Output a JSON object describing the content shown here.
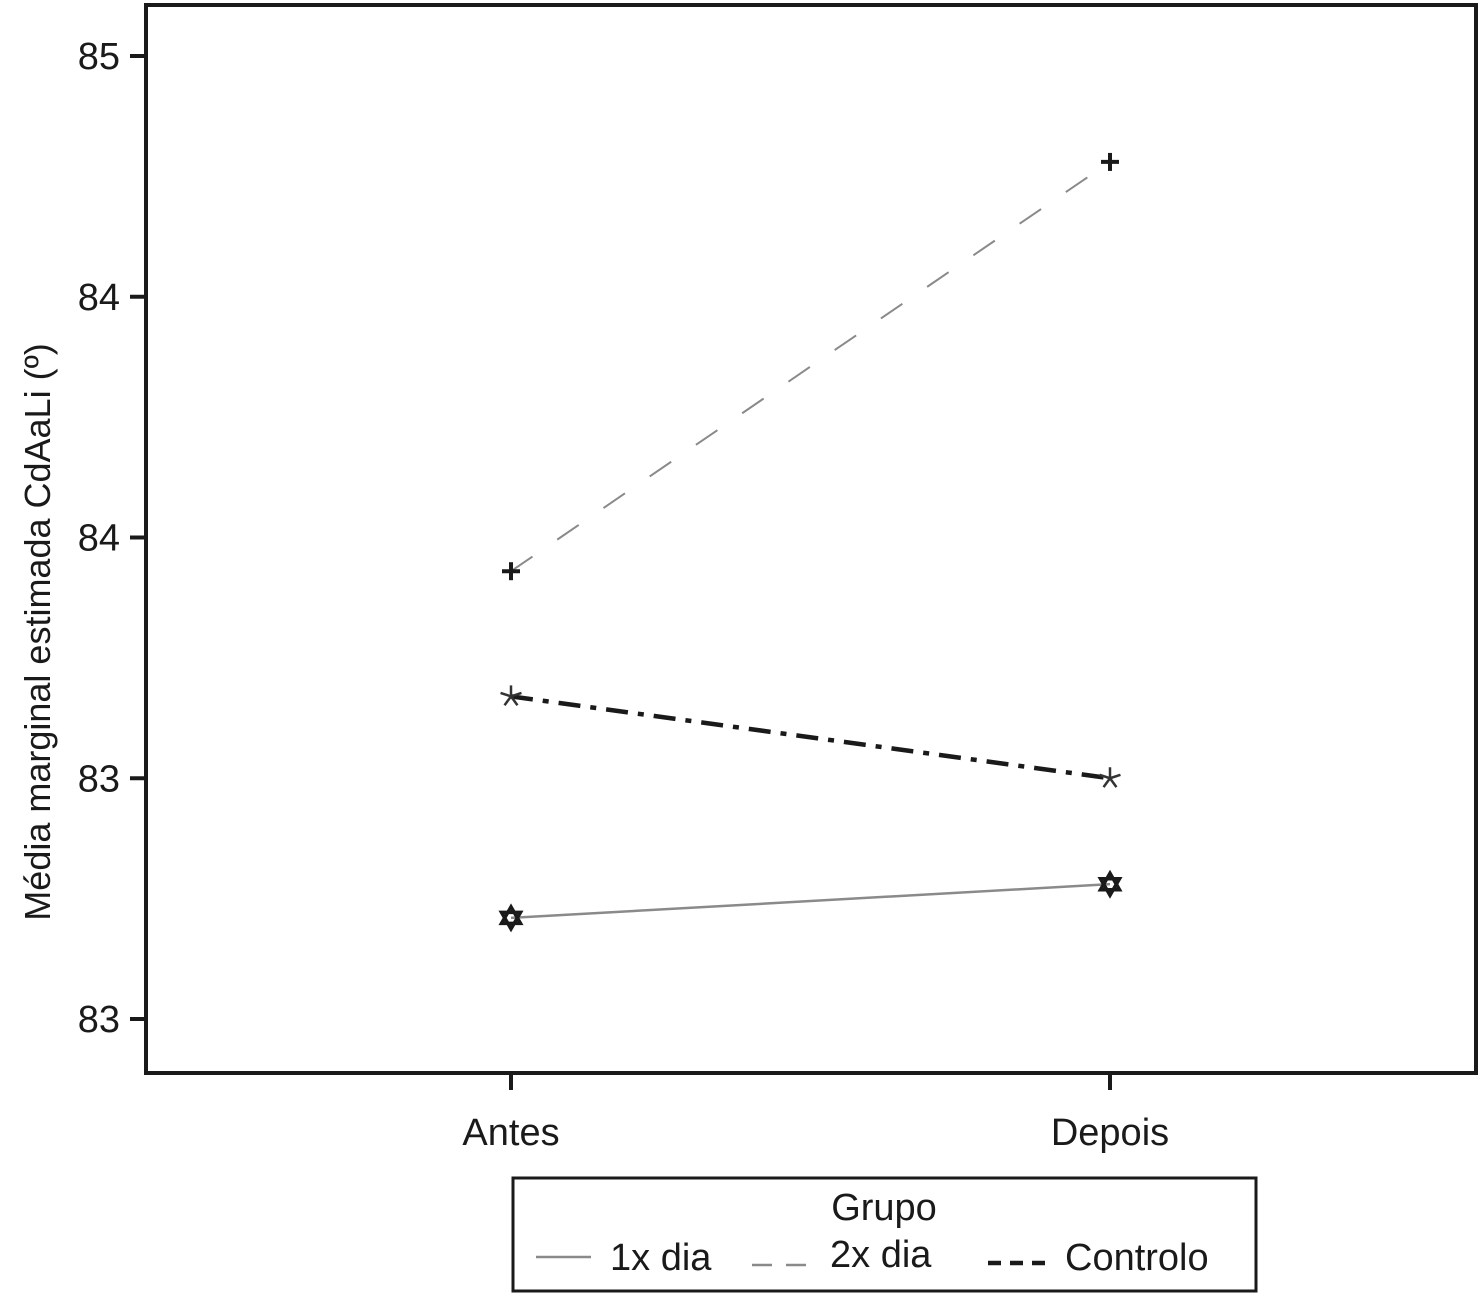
{
  "chart_data": {
    "type": "line",
    "title": "",
    "xlabel": "",
    "ylabel": "Média marginal estimada CdAaLi (º)",
    "categories": [
      "Antes",
      "Depois"
    ],
    "y_tick_labels": [
      "83",
      "83",
      "84",
      "84",
      "85"
    ],
    "y_tick_values": [
      82.5,
      83.0,
      83.5,
      84.0,
      84.5
    ],
    "ylim": [
      82.39,
      84.56
    ],
    "grid": false,
    "legend": {
      "title": "Grupo",
      "placement": "bottom",
      "entries": [
        "1x dia",
        "2x dia",
        "Controlo"
      ]
    },
    "series": [
      {
        "name": "1x dia",
        "values": [
          82.71,
          82.78
        ],
        "color": "#8a8a8a",
        "line_style": "solid",
        "marker": "star-of-david"
      },
      {
        "name": "2x dia",
        "values": [
          83.43,
          84.28
        ],
        "color": "#8a8a8a",
        "line_style": "dashed",
        "marker": "plus"
      },
      {
        "name": "Controlo",
        "values": [
          83.17,
          83.0
        ],
        "color": "#1a1a1a",
        "line_style": "dash-dot",
        "marker": "asterisk"
      }
    ]
  }
}
